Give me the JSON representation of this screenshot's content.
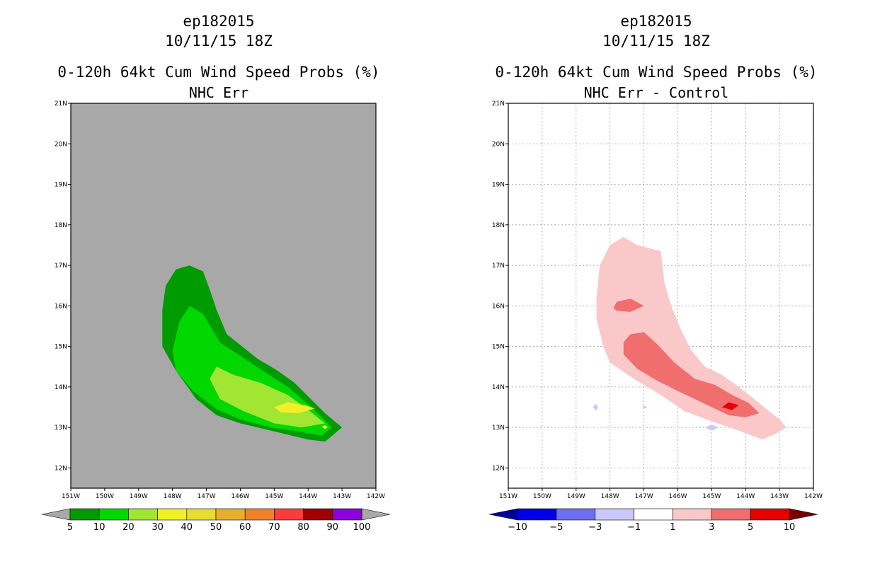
{
  "chart_data": [
    {
      "type": "contour-map",
      "storm_id": "ep182015",
      "date": "10/11/15 18Z",
      "title": "0-120h 64kt Cum Wind Speed Probs (%)",
      "subtitle": "NHC Err",
      "x_ticks": [
        "151W",
        "150W",
        "149W",
        "148W",
        "147W",
        "146W",
        "145W",
        "144W",
        "143W",
        "142W"
      ],
      "y_ticks": [
        "21N",
        "20N",
        "19N",
        "18N",
        "17N",
        "16N",
        "15N",
        "14N",
        "13N",
        "12N"
      ],
      "xlim": [
        -151,
        -142
      ],
      "ylim": [
        11.5,
        21
      ],
      "background": "#a8a8a8",
      "grid": false,
      "colorbar_labels": [
        "5",
        "10",
        "20",
        "30",
        "40",
        "50",
        "60",
        "70",
        "80",
        "90",
        "100"
      ],
      "colorbar_colors": [
        "#009b00",
        "#00d800",
        "#a0e632",
        "#f0f028",
        "#e6dc32",
        "#e6af2d",
        "#f08228",
        "#fa3c3c",
        "#a00000",
        "#8c00dc"
      ],
      "colorbar_arrow_color": "#a8a8a8",
      "contours": [
        {
          "level": 5,
          "color": "#009b00",
          "points": [
            [
              -148.3,
              15.9
            ],
            [
              -148.2,
              16.5
            ],
            [
              -147.9,
              16.9
            ],
            [
              -147.5,
              17.0
            ],
            [
              -147.1,
              16.85
            ],
            [
              -146.9,
              16.4
            ],
            [
              -146.7,
              15.9
            ],
            [
              -146.4,
              15.3
            ],
            [
              -145.5,
              14.7
            ],
            [
              -144.9,
              14.4
            ],
            [
              -144.4,
              14.1
            ],
            [
              -143.5,
              13.35
            ],
            [
              -143.0,
              13.0
            ],
            [
              -143.5,
              12.65
            ],
            [
              -144.0,
              12.7
            ],
            [
              -145.0,
              12.9
            ],
            [
              -146.0,
              13.1
            ],
            [
              -146.7,
              13.3
            ],
            [
              -147.3,
              13.7
            ],
            [
              -147.9,
              14.4
            ],
            [
              -148.3,
              15.0
            ]
          ]
        },
        {
          "level": 10,
          "color": "#00d800",
          "points": [
            [
              -148.0,
              14.9
            ],
            [
              -147.8,
              15.6
            ],
            [
              -147.5,
              16.0
            ],
            [
              -147.1,
              15.8
            ],
            [
              -146.6,
              15.1
            ],
            [
              -145.7,
              14.6
            ],
            [
              -144.6,
              14.0
            ],
            [
              -143.9,
              13.5
            ],
            [
              -143.3,
              13.0
            ],
            [
              -143.6,
              12.8
            ],
            [
              -144.3,
              12.9
            ],
            [
              -145.1,
              13.0
            ],
            [
              -146.0,
              13.2
            ],
            [
              -146.7,
              13.45
            ],
            [
              -147.4,
              13.9
            ],
            [
              -147.9,
              14.4
            ]
          ]
        },
        {
          "level": 20,
          "color": "#a0e632",
          "points": [
            [
              -146.9,
              14.2
            ],
            [
              -146.7,
              14.5
            ],
            [
              -146.2,
              14.3
            ],
            [
              -145.4,
              14.1
            ],
            [
              -144.6,
              13.8
            ],
            [
              -144.1,
              13.5
            ],
            [
              -143.5,
              13.1
            ],
            [
              -144.2,
              13.0
            ],
            [
              -145.0,
              13.1
            ],
            [
              -145.9,
              13.4
            ],
            [
              -146.6,
              13.7
            ]
          ]
        },
        {
          "level": 30,
          "color": "#f0f028",
          "points": [
            [
              -145.0,
              13.5
            ],
            [
              -144.6,
              13.62
            ],
            [
              -144.1,
              13.55
            ],
            [
              -143.8,
              13.47
            ],
            [
              -144.3,
              13.35
            ],
            [
              -144.8,
              13.37
            ]
          ]
        },
        {
          "level": 30,
          "color": "#f0f028",
          "points": [
            [
              -143.6,
              13.02
            ],
            [
              -143.5,
              13.06
            ],
            [
              -143.42,
              13.0
            ],
            [
              -143.5,
              12.96
            ]
          ]
        }
      ]
    },
    {
      "type": "contour-map",
      "storm_id": "ep182015",
      "date": "10/11/15 18Z",
      "title": "0-120h 64kt Cum Wind Speed Probs (%)",
      "subtitle": "NHC Err - Control",
      "x_ticks": [
        "151W",
        "150W",
        "149W",
        "148W",
        "147W",
        "146W",
        "145W",
        "144W",
        "143W",
        "142W"
      ],
      "y_ticks": [
        "21N",
        "20N",
        "19N",
        "18N",
        "17N",
        "16N",
        "15N",
        "14N",
        "13N",
        "12N"
      ],
      "xlim": [
        -151,
        -142
      ],
      "ylim": [
        11.5,
        21
      ],
      "background": "#ffffff",
      "grid": true,
      "colorbar_labels": [
        "-10",
        "-5",
        "-3",
        "-1",
        "1",
        "3",
        "5",
        "10"
      ],
      "colorbar_colors": [
        "#0000e6",
        "#6e6ef0",
        "#c8c8fa",
        "#ffffff",
        "#fac8c8",
        "#f06e6e",
        "#e60000"
      ],
      "colorbar_left_arrow_color": "#000096",
      "colorbar_right_arrow_color": "#780000",
      "contours": [
        {
          "level": 1,
          "color": "#fac8c8",
          "points": [
            [
              -148.4,
              16.2
            ],
            [
              -148.3,
              17.0
            ],
            [
              -148.0,
              17.5
            ],
            [
              -147.6,
              17.7
            ],
            [
              -147.2,
              17.5
            ],
            [
              -146.5,
              17.35
            ],
            [
              -146.4,
              16.6
            ],
            [
              -146.2,
              16.0
            ],
            [
              -145.9,
              15.4
            ],
            [
              -145.6,
              14.9
            ],
            [
              -145.2,
              14.5
            ],
            [
              -144.7,
              14.3
            ],
            [
              -144.2,
              14.0
            ],
            [
              -143.6,
              13.6
            ],
            [
              -143.0,
              13.2
            ],
            [
              -142.8,
              13.0
            ],
            [
              -143.1,
              12.85
            ],
            [
              -143.5,
              12.7
            ],
            [
              -144.3,
              12.95
            ],
            [
              -145.0,
              13.15
            ],
            [
              -145.8,
              13.4
            ],
            [
              -146.5,
              13.8
            ],
            [
              -147.3,
              14.2
            ],
            [
              -148.0,
              14.6
            ],
            [
              -148.2,
              15.0
            ],
            [
              -148.4,
              15.7
            ]
          ]
        },
        {
          "level": 3,
          "color": "#f06e6e",
          "points": [
            [
              -147.6,
              15.1
            ],
            [
              -147.4,
              15.3
            ],
            [
              -147.0,
              15.35
            ],
            [
              -146.6,
              15.05
            ],
            [
              -146.1,
              14.6
            ],
            [
              -145.5,
              14.2
            ],
            [
              -144.9,
              14.05
            ],
            [
              -144.4,
              13.8
            ],
            [
              -143.9,
              13.6
            ],
            [
              -143.6,
              13.35
            ],
            [
              -144.0,
              13.25
            ],
            [
              -144.5,
              13.3
            ],
            [
              -145.0,
              13.5
            ],
            [
              -145.5,
              13.7
            ],
            [
              -146.0,
              13.9
            ],
            [
              -146.6,
              14.15
            ],
            [
              -147.2,
              14.45
            ],
            [
              -147.6,
              14.8
            ]
          ]
        },
        {
          "level": 3,
          "color": "#f06e6e",
          "points": [
            [
              -147.9,
              15.95
            ],
            [
              -147.8,
              16.1
            ],
            [
              -147.4,
              16.18
            ],
            [
              -147.0,
              16.0
            ],
            [
              -147.4,
              15.85
            ],
            [
              -147.8,
              15.88
            ]
          ]
        },
        {
          "level": 5,
          "color": "#e60000",
          "points": [
            [
              -144.7,
              13.5
            ],
            [
              -144.5,
              13.62
            ],
            [
              -144.2,
              13.55
            ],
            [
              -144.4,
              13.43
            ]
          ]
        },
        {
          "level": -1,
          "color": "#c8c8fa",
          "points": [
            [
              -148.5,
              13.5
            ],
            [
              -148.42,
              13.58
            ],
            [
              -148.35,
              13.5
            ],
            [
              -148.42,
              13.42
            ]
          ]
        },
        {
          "level": -1,
          "color": "#c8c8fa",
          "points": [
            [
              -147.05,
              13.5
            ],
            [
              -146.98,
              13.53
            ],
            [
              -146.9,
              13.5
            ],
            [
              -146.98,
              13.47
            ]
          ]
        },
        {
          "level": -1,
          "color": "#c8c8fa",
          "points": [
            [
              -145.2,
              13.0
            ],
            [
              -145.0,
              13.07
            ],
            [
              -144.8,
              13.0
            ],
            [
              -145.0,
              12.92
            ]
          ]
        }
      ]
    }
  ]
}
